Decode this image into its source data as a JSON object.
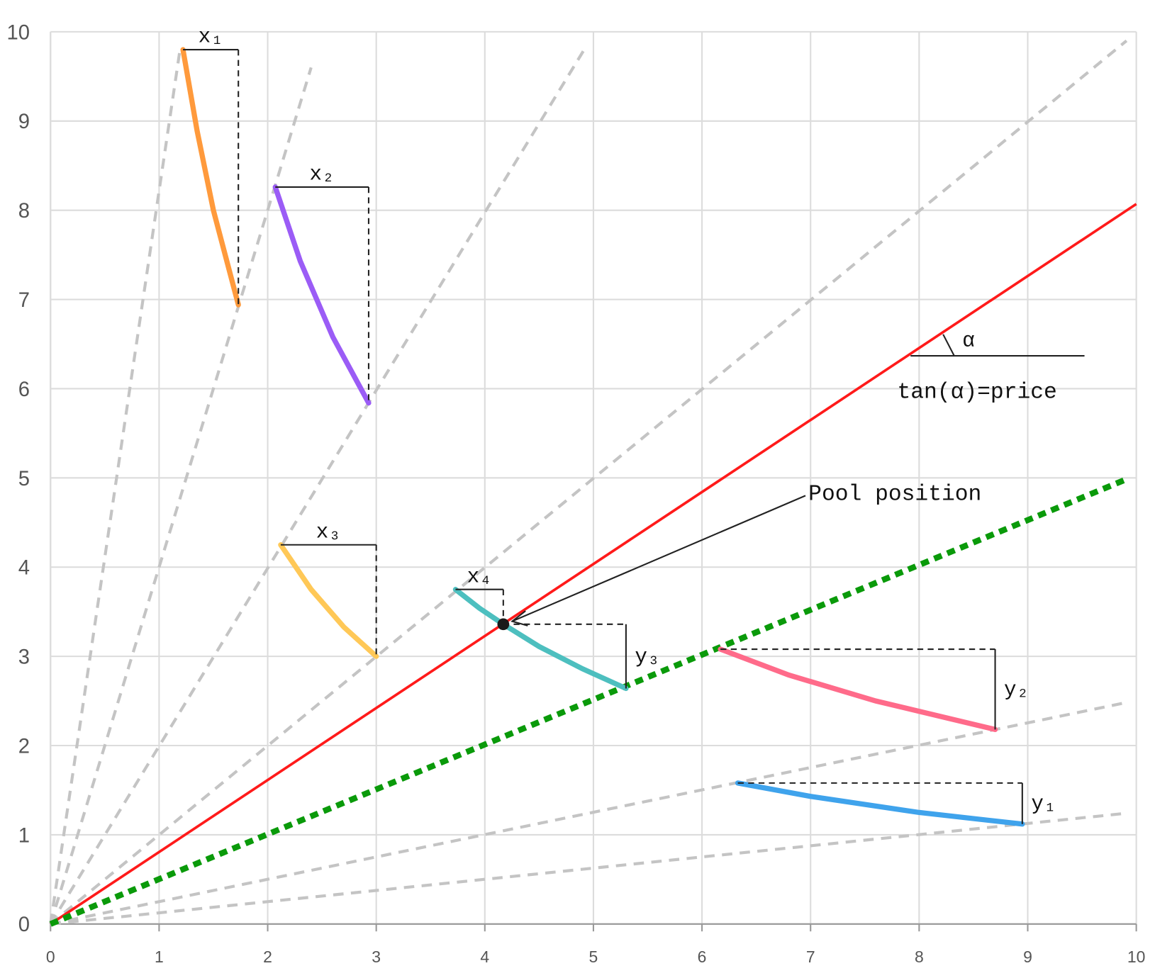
{
  "chart_data": {
    "type": "line",
    "xlim": [
      0,
      10
    ],
    "ylim": [
      0,
      10
    ],
    "xticks": [
      0,
      1,
      2,
      3,
      4,
      5,
      6,
      7,
      8,
      9,
      10
    ],
    "yticks": [
      0,
      1,
      2,
      3,
      4,
      5,
      6,
      7,
      8,
      9,
      10
    ],
    "grid": true,
    "series": [
      {
        "color": "#c4c4c4",
        "style": "dashed",
        "x": [
          0,
          1.19
        ],
        "y": [
          0,
          9.78
        ]
      },
      {
        "color": "#c4c4c4",
        "style": "dashed",
        "x": [
          0,
          2.4
        ],
        "y": [
          0,
          9.6
        ]
      },
      {
        "color": "#c4c4c4",
        "style": "dashed",
        "x": [
          0,
          4.91
        ],
        "y": [
          0,
          9.79
        ]
      },
      {
        "color": "#c4c4c4",
        "style": "dashed",
        "x": [
          0,
          9.91
        ],
        "y": [
          0,
          9.9
        ]
      },
      {
        "color": "#c4c4c4",
        "style": "dashed",
        "x": [
          0,
          9.9
        ],
        "y": [
          0,
          2.48
        ]
      },
      {
        "color": "#c4c4c4",
        "style": "dashed",
        "x": [
          0,
          9.9
        ],
        "y": [
          0,
          1.24
        ]
      },
      {
        "color": "#ff1a1a",
        "style": "solid",
        "x": [
          0,
          10
        ],
        "y": [
          0,
          8.07
        ]
      },
      {
        "color": "#0a9a0a",
        "style": "dotted",
        "x": [
          0,
          9.9
        ],
        "y": [
          0,
          4.98
        ]
      },
      {
        "color": "#ff9a3c",
        "style": "thick",
        "bracket": "x",
        "label": "x₁",
        "x": [
          1.22,
          1.35,
          1.5,
          1.73
        ],
        "y": [
          9.8,
          8.89,
          8.0,
          6.94
        ]
      },
      {
        "color": "#9b5cf6",
        "style": "thick",
        "bracket": "x",
        "label": "x₂",
        "x": [
          2.07,
          2.3,
          2.6,
          2.93
        ],
        "y": [
          8.26,
          7.43,
          6.58,
          5.84
        ]
      },
      {
        "color": "#ffc857",
        "style": "thick",
        "bracket": "x",
        "label": "x₃",
        "x": [
          2.12,
          2.4,
          2.7,
          3.0
        ],
        "y": [
          4.25,
          3.75,
          3.33,
          3.0
        ]
      },
      {
        "color": "#4dbfbf",
        "style": "thick",
        "bracket": "x",
        "label": "x₄",
        "x": [
          3.73,
          3.95,
          4.17
        ],
        "y": [
          3.75,
          3.54,
          3.36
        ]
      },
      {
        "color": "#4dbfbf",
        "style": "thick",
        "bracket": "y",
        "label": "y₃",
        "x": [
          4.17,
          4.5,
          4.9,
          5.3
        ],
        "y": [
          3.36,
          3.11,
          2.86,
          2.64
        ]
      },
      {
        "color": "#ff6b8a",
        "style": "thick",
        "bracket": "y",
        "label": "y₂",
        "x": [
          6.17,
          6.8,
          7.6,
          8.7
        ],
        "y": [
          3.08,
          2.79,
          2.5,
          2.18
        ]
      },
      {
        "color": "#3fa3ec",
        "style": "thick",
        "bracket": "y",
        "label": "y₁",
        "x": [
          6.33,
          7.0,
          8.0,
          8.95
        ],
        "y": [
          1.58,
          1.43,
          1.25,
          1.12
        ]
      }
    ],
    "points": [
      {
        "x": 4.17,
        "y": 3.36,
        "color": "#1a1a1a",
        "label": "Pool position"
      }
    ],
    "angle_label": "α",
    "angle_caption": "tan(α)=price"
  }
}
